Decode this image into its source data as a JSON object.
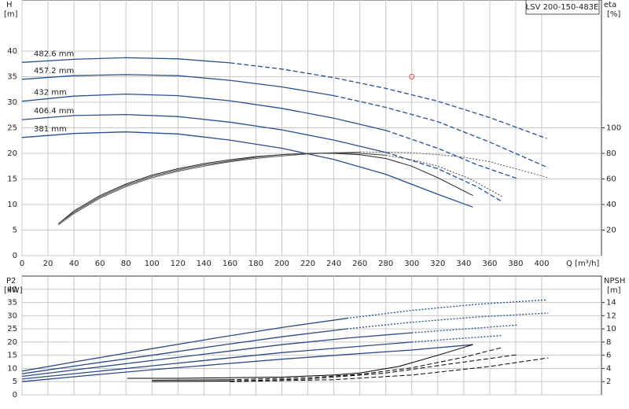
{
  "chart_data": [
    {
      "type": "line",
      "title": "LSV 200-150-483E",
      "xlabel": "Q [m³/h]",
      "ylabel": "H",
      "yunit": "[m]",
      "y2label": "eta",
      "y2unit": "[%]",
      "xlim": [
        0,
        446
      ],
      "xticks": [
        0,
        20,
        40,
        60,
        80,
        100,
        120,
        140,
        160,
        180,
        200,
        220,
        240,
        260,
        280,
        300,
        320,
        340,
        360,
        380,
        400
      ],
      "ylim": [
        0,
        50
      ],
      "yticks": [
        0,
        5,
        10,
        15,
        20,
        25,
        30,
        35,
        40
      ],
      "y2lim": [
        0,
        200
      ],
      "y2ticks": [
        20,
        40,
        60,
        80,
        100
      ],
      "grid": true,
      "duty_point": {
        "x": 300,
        "y": 35,
        "color": "#e05050"
      },
      "series": [
        {
          "name": "482.6 mm",
          "color": "#2a4f8f",
          "dash": "dashed",
          "solid_until": 160,
          "x": [
            0,
            40,
            80,
            120,
            160,
            200,
            240,
            280,
            320,
            360,
            404
          ],
          "values": [
            37.8,
            38.4,
            38.7,
            38.5,
            37.7,
            36.5,
            34.8,
            32.7,
            30.2,
            27,
            22.9
          ]
        },
        {
          "name": "457.2 mm",
          "color": "#2a4f8f",
          "dash": "dashed",
          "solid_until": 240,
          "x": [
            0,
            40,
            80,
            120,
            160,
            200,
            240,
            280,
            320,
            360,
            405
          ],
          "values": [
            34.5,
            35.2,
            35.4,
            35.2,
            34.3,
            33,
            31.3,
            29,
            26.2,
            22.2,
            17.2
          ]
        },
        {
          "name": "432 mm",
          "color": "#2a4f8f",
          "dash": "dashed",
          "solid_until": 280,
          "x": [
            0,
            40,
            80,
            120,
            160,
            200,
            240,
            280,
            320,
            350,
            382
          ],
          "values": [
            30.2,
            31.2,
            31.6,
            31.3,
            30.3,
            28.8,
            26.9,
            24.5,
            21,
            17.8,
            15
          ]
        },
        {
          "name": "406.4 mm",
          "color": "#2a4f8f",
          "dash": "dashed",
          "solid_until": 280,
          "x": [
            0,
            40,
            80,
            120,
            160,
            200,
            240,
            280,
            320,
            350,
            370
          ],
          "values": [
            26.6,
            27.4,
            27.6,
            27.2,
            26.1,
            24.6,
            22.6,
            20.2,
            17,
            13.5,
            10.5
          ]
        },
        {
          "name": "381 mm",
          "color": "#2a4f8f",
          "dash": "dashed",
          "solid_until": 347,
          "x": [
            0,
            40,
            80,
            120,
            160,
            200,
            240,
            280,
            320,
            347
          ],
          "values": [
            23.1,
            23.9,
            24.2,
            23.8,
            22.6,
            21,
            18.8,
            15.9,
            12,
            9.5
          ]
        },
        {
          "axis": "y2",
          "color": "#222222",
          "dash": "dotted",
          "solid_until": 347,
          "x": [
            28,
            40,
            60,
            80,
            100,
            120,
            140,
            160,
            180,
            200,
            220,
            240,
            260,
            280,
            300,
            320,
            347
          ],
          "values": [
            25,
            35,
            47,
            56,
            63,
            68,
            72,
            75,
            77.5,
            79,
            80,
            80,
            79,
            76,
            70,
            61,
            47
          ]
        },
        {
          "axis": "y2",
          "color": "#444444",
          "dash": "dotted",
          "solid_until": 280,
          "x": [
            28,
            40,
            60,
            80,
            100,
            120,
            140,
            160,
            180,
            200,
            220,
            240,
            260,
            280,
            300,
            320,
            345,
            370
          ],
          "values": [
            25,
            34,
            46,
            55,
            62,
            67,
            71,
            74,
            77,
            79,
            80,
            80.5,
            80,
            78.5,
            75,
            70,
            60,
            46
          ]
        },
        {
          "axis": "y2",
          "color": "#555555",
          "dash": "dotted",
          "solid_until": 260,
          "x": [
            28,
            40,
            60,
            80,
            100,
            120,
            140,
            160,
            180,
            200,
            220,
            240,
            260,
            280,
            300,
            320,
            340,
            360,
            380,
            405
          ],
          "values": [
            24,
            33,
            45,
            54,
            61,
            66,
            70,
            73.5,
            76,
            78,
            79.5,
            80.5,
            81,
            81,
            80.5,
            79,
            77,
            73.5,
            68,
            61
          ]
        }
      ]
    },
    {
      "type": "line",
      "ylabel": "P2",
      "yunit": "[kW]",
      "y2label": "NPSH",
      "y2unit": "[m]",
      "xlim": [
        0,
        446
      ],
      "ylim": [
        0,
        45
      ],
      "yticks": [
        0,
        5,
        10,
        15,
        20,
        25,
        30,
        35,
        40
      ],
      "y2lim": [
        0,
        18
      ],
      "y2ticks": [
        2,
        4,
        6,
        8,
        10,
        12,
        14
      ],
      "grid": true,
      "series": [
        {
          "color": "#2b4a86",
          "dash": "dotted",
          "solid_until": 250,
          "x": [
            0,
            50,
            100,
            150,
            200,
            250,
            300,
            350,
            404
          ],
          "values": [
            9,
            13.3,
            17.5,
            21.6,
            25.5,
            29,
            32,
            34.3,
            36
          ]
        },
        {
          "color": "#2b4a86",
          "dash": "dotted",
          "solid_until": 250,
          "x": [
            0,
            50,
            100,
            150,
            200,
            250,
            300,
            350,
            405
          ],
          "values": [
            8,
            11.6,
            15,
            18.6,
            22,
            25,
            27.5,
            29.5,
            31
          ]
        },
        {
          "color": "#2b4a86",
          "dash": "dotted",
          "solid_until": 300,
          "x": [
            0,
            50,
            100,
            150,
            200,
            250,
            300,
            350,
            382
          ],
          "values": [
            7,
            10,
            13,
            16,
            19,
            21.5,
            23.5,
            25.3,
            26.5
          ]
        },
        {
          "color": "#2b4a86",
          "dash": "dotted",
          "solid_until": 300,
          "x": [
            0,
            50,
            100,
            150,
            200,
            250,
            300,
            350,
            370
          ],
          "values": [
            6,
            8.5,
            11,
            13.5,
            16,
            18,
            20,
            21.8,
            22.5
          ]
        },
        {
          "color": "#2b4a86",
          "dash": "dotted",
          "solid_until": 347,
          "x": [
            0,
            50,
            100,
            150,
            200,
            250,
            300,
            347
          ],
          "values": [
            5,
            7.3,
            9.5,
            11.5,
            13.5,
            15.3,
            17,
            19
          ]
        },
        {
          "axis": "y2",
          "color": "#000000",
          "dash": "dashed",
          "solid_until": 347,
          "x": [
            81,
            120,
            160,
            200,
            240,
            260,
            290,
            320,
            347
          ],
          "values": [
            2.5,
            2.5,
            2.6,
            2.7,
            3,
            3.3,
            4.3,
            6,
            7.6
          ]
        },
        {
          "axis": "y2",
          "color": "#000000",
          "dash": "dashed",
          "solid_until": 160,
          "x": [
            100,
            160,
            220,
            260,
            300,
            340,
            370
          ],
          "values": [
            2.2,
            2.3,
            2.6,
            3.1,
            4.1,
            5.7,
            7.2
          ]
        },
        {
          "axis": "y2",
          "color": "#000000",
          "dash": "dashed",
          "solid_until": 160,
          "x": [
            100,
            160,
            220,
            280,
            330,
            382
          ],
          "values": [
            2,
            2.1,
            2.4,
            3.3,
            4.7,
            6.1
          ]
        },
        {
          "axis": "y2",
          "color": "#000000",
          "dash": "dashed",
          "solid_until": 160,
          "x": [
            160,
            240,
            300,
            360,
            405
          ],
          "values": [
            2,
            2.3,
            3,
            4.3,
            5.6
          ]
        }
      ]
    }
  ]
}
